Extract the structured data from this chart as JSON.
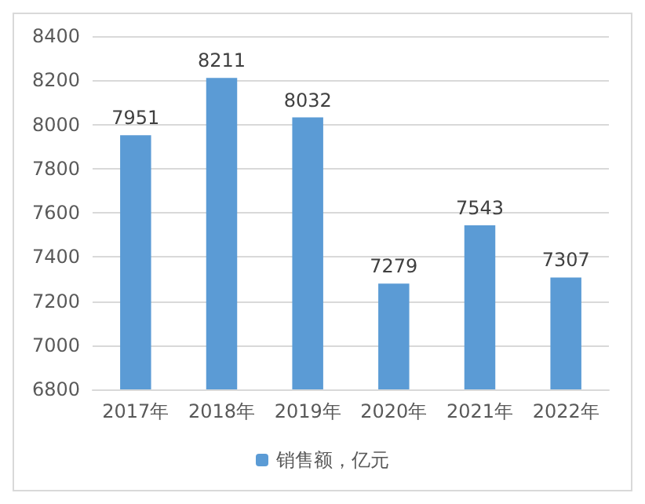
{
  "chart_data": {
    "type": "bar",
    "categories": [
      "2017年",
      "2018年",
      "2019年",
      "2020年",
      "2021年",
      "2022年"
    ],
    "series": [
      {
        "name": "销售额，亿元",
        "color": "#5b9bd5",
        "values": [
          7951,
          8211,
          8032,
          7279,
          7543,
          7307
        ]
      }
    ],
    "ylim": [
      6800,
      8400
    ],
    "yticks": [
      6800,
      7000,
      7200,
      7400,
      7600,
      7800,
      8000,
      8200,
      8400
    ],
    "grid": "y",
    "legend": "bottom",
    "data_labels": true
  }
}
